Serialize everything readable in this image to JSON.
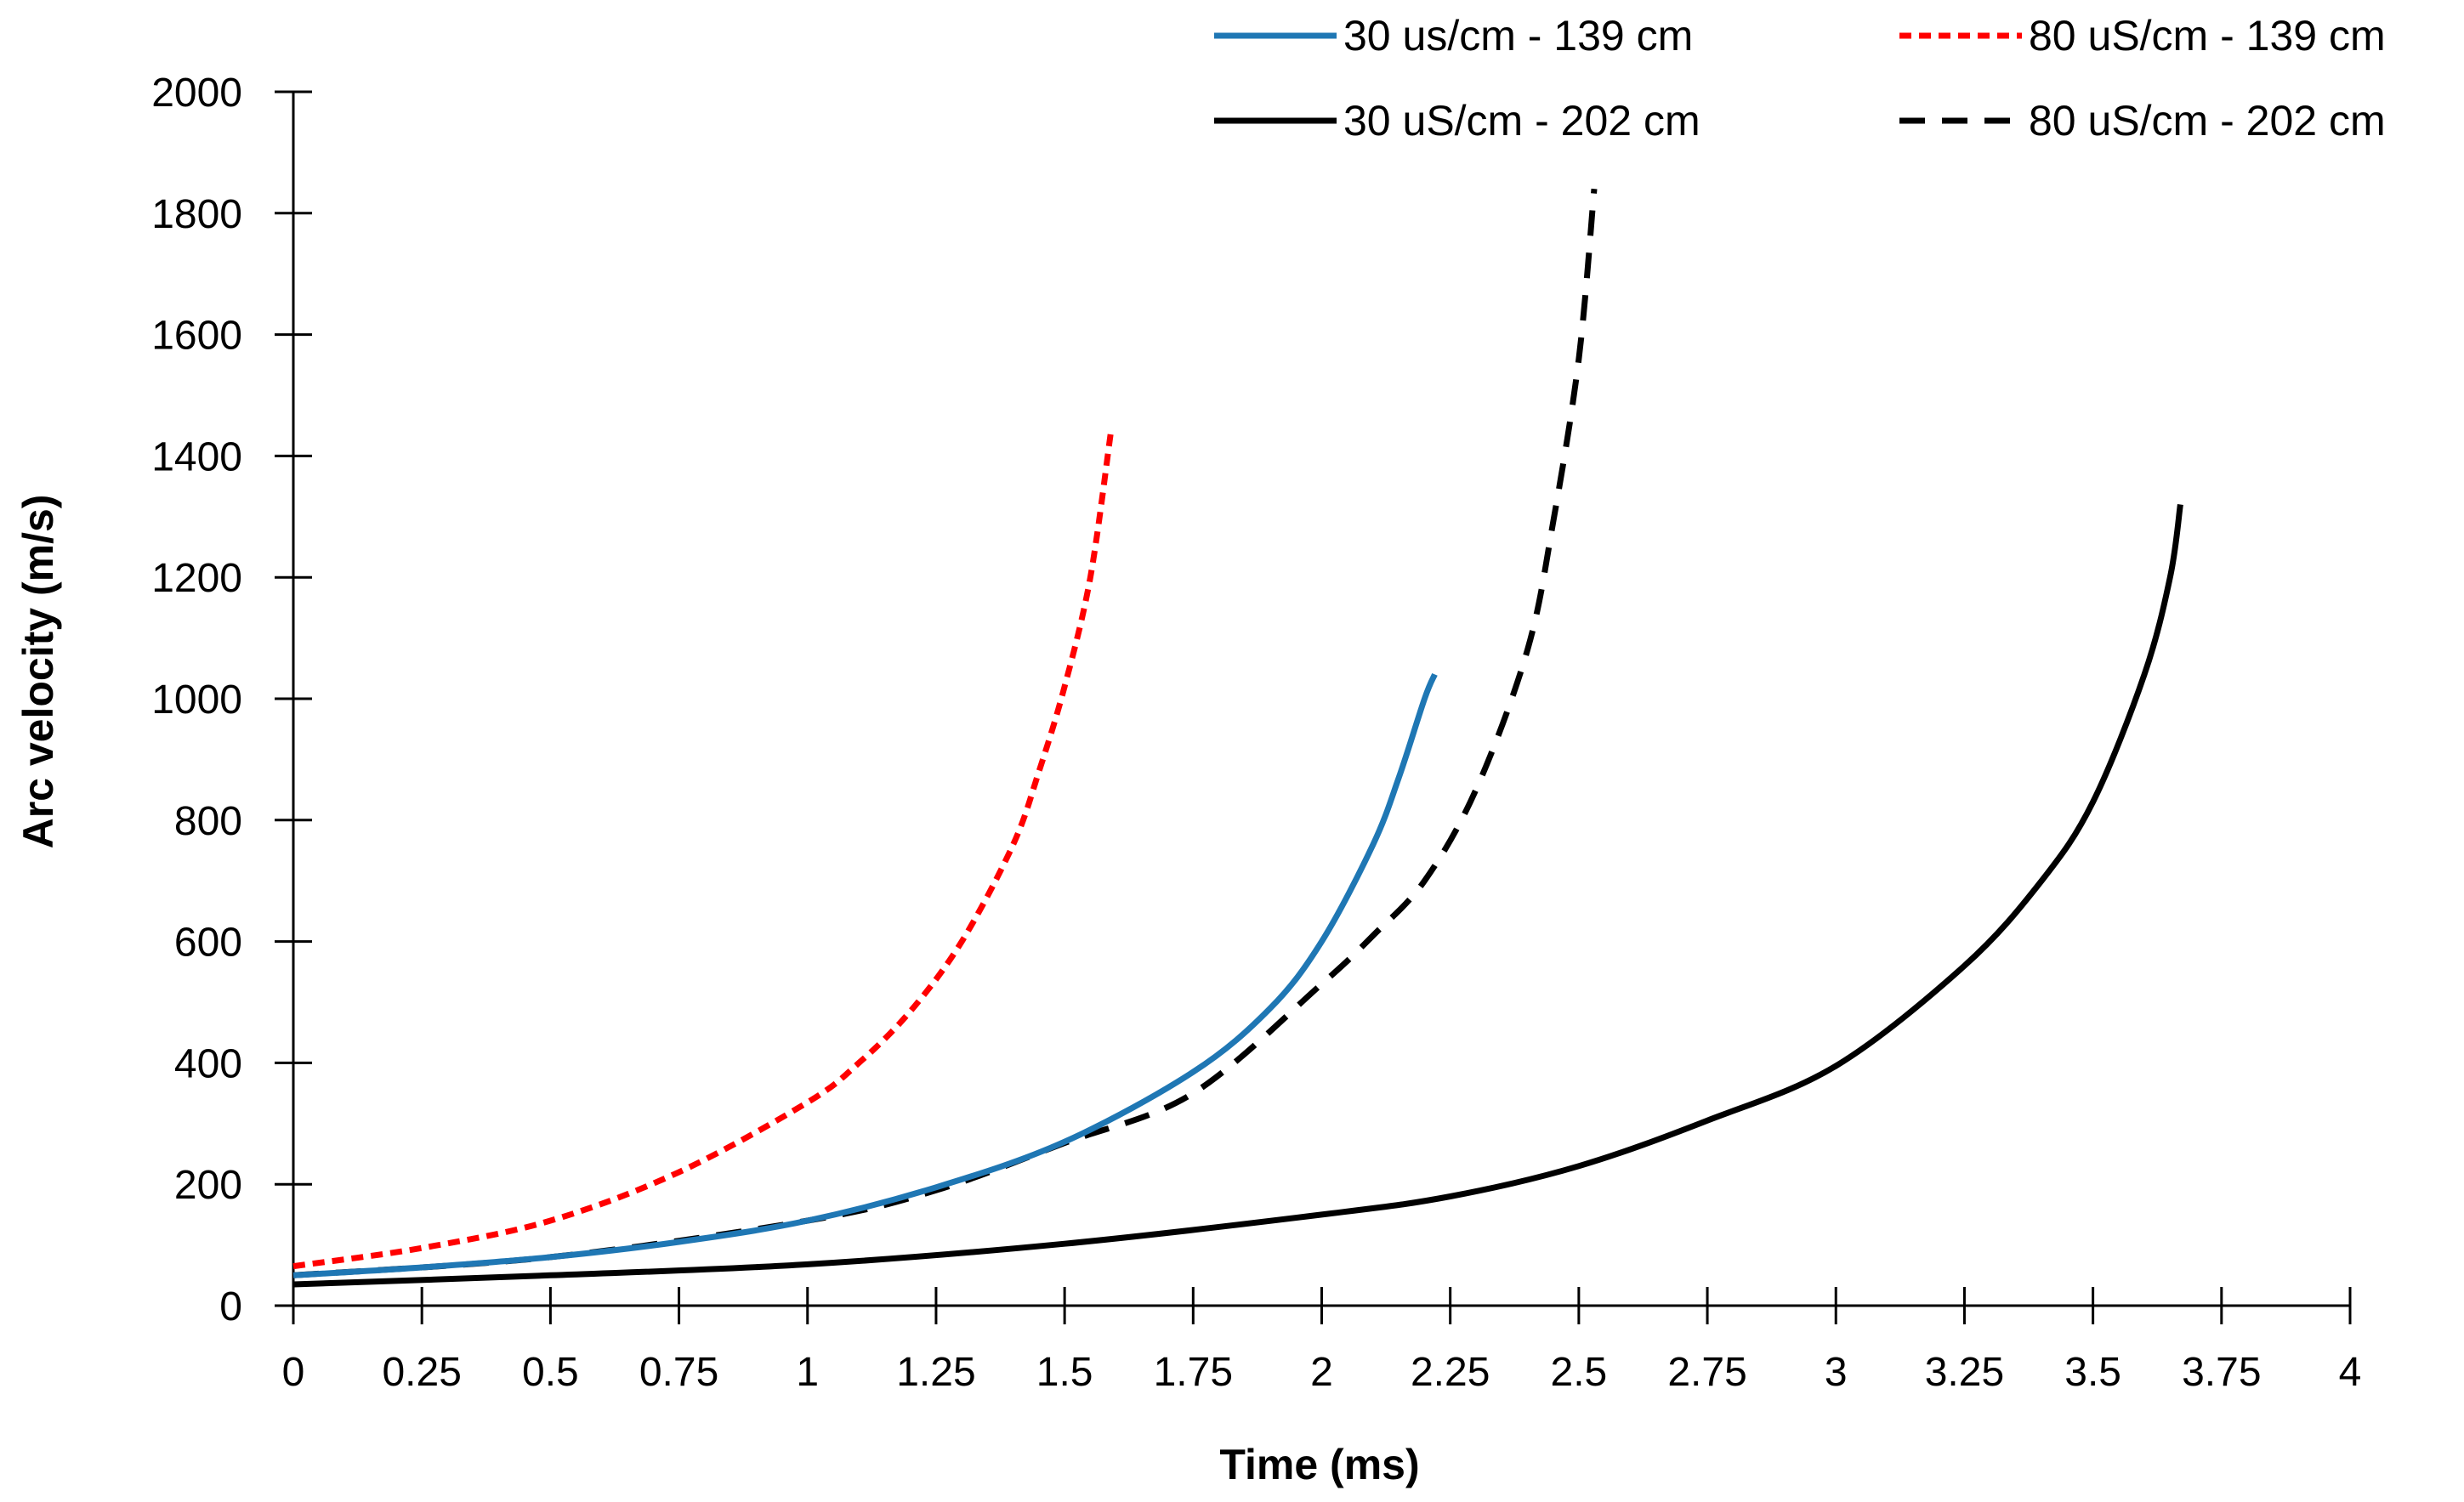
{
  "chart_data": {
    "type": "line",
    "title": "",
    "xlabel": "Time (ms)",
    "ylabel": "Arc velocity  (m/s)",
    "xlim": [
      0,
      4
    ],
    "ylim": [
      0,
      2000
    ],
    "x_ticks": [
      0,
      0.25,
      0.5,
      0.75,
      1,
      1.25,
      1.5,
      1.75,
      2,
      2.25,
      2.5,
      2.75,
      3,
      3.25,
      3.5,
      3.75,
      4
    ],
    "x_tick_labels": [
      "0",
      "0.25",
      "0.5",
      "0.75",
      "1",
      "1.25",
      "1.5",
      "1.75",
      "2",
      "2.25",
      "2.5",
      "2.75",
      "3",
      "3.25",
      "3.5",
      "3.75",
      "4"
    ],
    "y_ticks": [
      0,
      200,
      400,
      600,
      800,
      1000,
      1200,
      1400,
      1600,
      1800,
      2000
    ],
    "y_tick_labels": [
      "0",
      "200",
      "400",
      "600",
      "800",
      "1000",
      "1200",
      "1400",
      "1600",
      "1800",
      "2000"
    ],
    "grid": false,
    "legend_position": "top-right",
    "series": [
      {
        "name": "30 us/cm - 139 cm",
        "color": "#1f77b4",
        "line_style": "solid",
        "x": [
          0,
          0.25,
          0.5,
          0.75,
          1,
          1.25,
          1.5,
          1.75,
          1.9,
          2.0,
          2.1,
          2.15,
          2.2,
          2.22
        ],
        "y": [
          50,
          63,
          80,
          105,
          140,
          195,
          270,
          385,
          490,
          600,
          760,
          870,
          1000,
          1040
        ]
      },
      {
        "name": "80 uS/cm - 139 cm",
        "color": "#ff0000",
        "line_style": "dotted",
        "x": [
          0,
          0.25,
          0.5,
          0.75,
          1,
          1.1,
          1.2,
          1.3,
          1.4,
          1.45,
          1.5,
          1.55,
          1.59
        ],
        "y": [
          65,
          95,
          140,
          220,
          335,
          400,
          485,
          600,
          760,
          880,
          1020,
          1200,
          1440
        ]
      },
      {
        "name": "30 uS/cm - 202 cm",
        "color": "#000000",
        "line_style": "solid",
        "x": [
          0,
          0.5,
          1,
          1.5,
          2,
          2.25,
          2.5,
          2.75,
          3,
          3.25,
          3.4,
          3.5,
          3.6,
          3.65,
          3.67
        ],
        "y": [
          35,
          50,
          68,
          102,
          150,
          180,
          230,
          305,
          395,
          560,
          700,
          830,
          1040,
          1200,
          1320
        ]
      },
      {
        "name": "80 uS/cm - 202 cm",
        "color": "#000000",
        "line_style": "dashed",
        "x": [
          0,
          0.5,
          1,
          1.25,
          1.5,
          1.75,
          2,
          2.1,
          2.2,
          2.3,
          2.4,
          2.45,
          2.5,
          2.53
        ],
        "y": [
          50,
          80,
          140,
          190,
          268,
          350,
          530,
          610,
          700,
          850,
          1080,
          1290,
          1560,
          1840
        ]
      }
    ]
  }
}
